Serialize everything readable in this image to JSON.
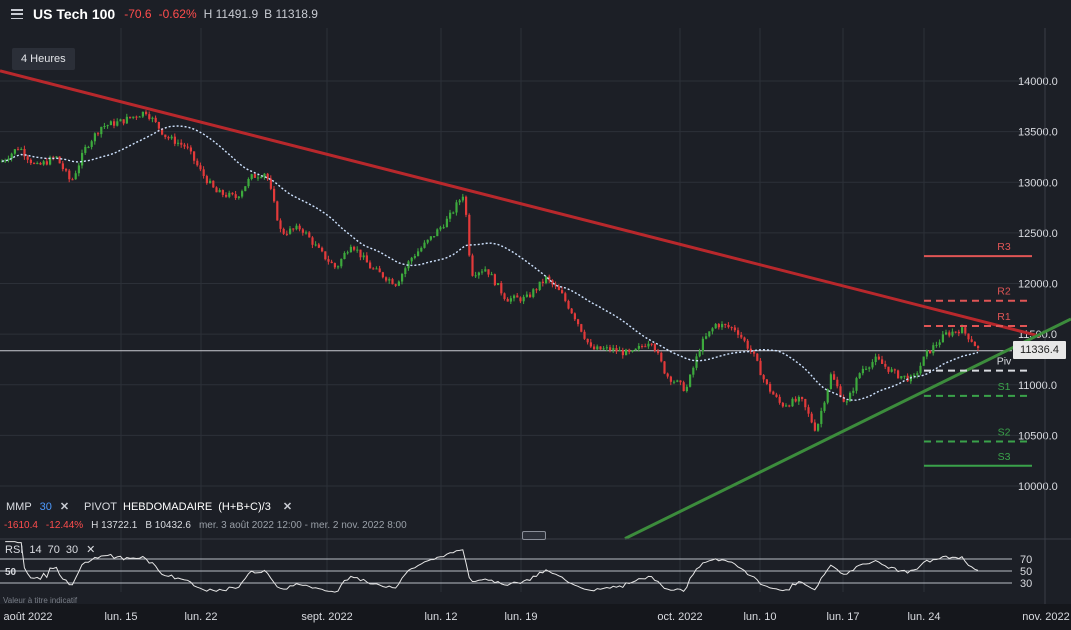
{
  "header": {
    "symbol": "US Tech 100",
    "change": "-70.6",
    "change_pct": "-0.62%",
    "high": "H 11491.9",
    "low": "B 11318.9"
  },
  "timeframe": "4 Heures",
  "colors": {
    "up": "#3daa3d",
    "down": "#e23a3a",
    "resistance": "#e05555",
    "support": "#3aa24a",
    "trend_down": "#b8282c",
    "trend_up": "#3c8c3c"
  },
  "chart_data": {
    "type": "candlestick",
    "y_ticks": [
      "14000.0",
      "13500.0",
      "13000.0",
      "12500.0",
      "12000.0",
      "11500.0",
      "11000.0",
      "10500.0",
      "10000.0"
    ],
    "x_ticks": [
      "août 2022",
      "lun. 15",
      "lun. 22",
      "sept. 2022",
      "lun. 12",
      "lun. 19",
      "oct. 2022",
      "lun. 10",
      "lun. 17",
      "lun. 24",
      "nov. 2022"
    ],
    "last_price": "11336.4",
    "pivots": [
      {
        "label": "R3",
        "value": 12270,
        "color": "#e05555",
        "style": "solid"
      },
      {
        "label": "R2",
        "value": 11830,
        "color": "#e05555",
        "style": "dashed"
      },
      {
        "label": "R1",
        "value": 11580,
        "color": "#e05555",
        "style": "dashed"
      },
      {
        "label": "Piv",
        "value": 11140,
        "color": "#d9dbe0",
        "style": "dashed"
      },
      {
        "label": "S1",
        "value": 10890,
        "color": "#3aa24a",
        "style": "dashed"
      },
      {
        "label": "S2",
        "value": 10440,
        "color": "#3aa24a",
        "style": "dashed"
      },
      {
        "label": "S3",
        "value": 10200,
        "color": "#3aa24a",
        "style": "solid"
      }
    ],
    "path": [
      [
        0,
        13200
      ],
      [
        18,
        13350
      ],
      [
        35,
        13150
      ],
      [
        55,
        13250
      ],
      [
        70,
        13000
      ],
      [
        85,
        13350
      ],
      [
        100,
        13550
      ],
      [
        120,
        13600
      ],
      [
        145,
        13700
      ],
      [
        165,
        13450
      ],
      [
        185,
        13350
      ],
      [
        200,
        13100
      ],
      [
        215,
        12900
      ],
      [
        235,
        12850
      ],
      [
        250,
        13050
      ],
      [
        265,
        13100
      ],
      [
        280,
        12500
      ],
      [
        300,
        12550
      ],
      [
        320,
        12300
      ],
      [
        335,
        12150
      ],
      [
        350,
        12400
      ],
      [
        370,
        12150
      ],
      [
        395,
        12000
      ],
      [
        410,
        12250
      ],
      [
        430,
        12450
      ],
      [
        448,
        12650
      ],
      [
        463,
        12900
      ],
      [
        470,
        12100
      ],
      [
        485,
        12150
      ],
      [
        505,
        11850
      ],
      [
        525,
        11850
      ],
      [
        545,
        12050
      ],
      [
        560,
        11900
      ],
      [
        575,
        11650
      ],
      [
        590,
        11350
      ],
      [
        610,
        11350
      ],
      [
        630,
        11300
      ],
      [
        650,
        11450
      ],
      [
        665,
        11100
      ],
      [
        685,
        10950
      ],
      [
        700,
        11400
      ],
      [
        715,
        11600
      ],
      [
        735,
        11550
      ],
      [
        752,
        11300
      ],
      [
        765,
        11000
      ],
      [
        780,
        10800
      ],
      [
        800,
        10850
      ],
      [
        815,
        10550
      ],
      [
        830,
        11100
      ],
      [
        845,
        10800
      ],
      [
        860,
        11150
      ],
      [
        875,
        11250
      ],
      [
        895,
        11100
      ],
      [
        912,
        11050
      ],
      [
        925,
        11300
      ],
      [
        945,
        11500
      ],
      [
        960,
        11550
      ],
      [
        970,
        11450
      ],
      [
        978,
        11336
      ]
    ],
    "trendlines": [
      {
        "name": "descending-resistance",
        "from": [
          0,
          14100
        ],
        "to": [
          1040,
          11480
        ]
      },
      {
        "name": "ascending-support",
        "from": [
          625,
          9480
        ],
        "to": [
          1071,
          11650
        ]
      }
    ]
  },
  "indicators": {
    "mmp_label": "MMP",
    "mmp_value": "30",
    "pivot_label": "PIVOT",
    "pivot_type": "HEBDOMADAIRE",
    "pivot_formula": "(H+B+C)/3",
    "close_glyph": "✕",
    "info_change": "-1610.4",
    "info_change_pct": "-12.44%",
    "info_high": "H 13722.1",
    "info_low": "B 10432.6",
    "info_range": "mer. 3 août 2022 12:00 - mer. 2 nov. 2022 8:00"
  },
  "rsi": {
    "label": "RSI",
    "p1": "14",
    "p2": "70",
    "p3": "30",
    "current": "50",
    "levels": [
      "70",
      "50",
      "30"
    ]
  },
  "footnote": "Valeur à titre indicatif"
}
